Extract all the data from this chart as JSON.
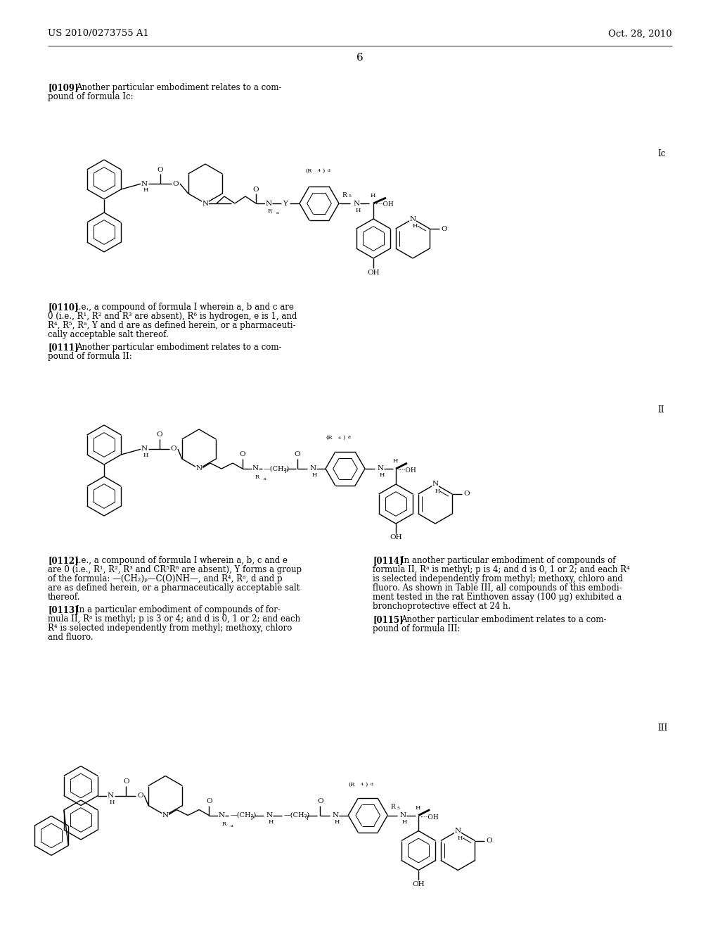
{
  "background": "#ffffff",
  "header_left": "US 2010/0273755 A1",
  "header_right": "Oct. 28, 2010",
  "page_num": "6"
}
